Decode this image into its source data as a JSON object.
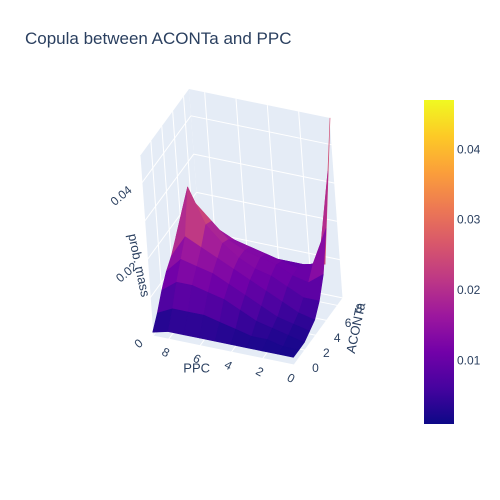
{
  "chart_data": {
    "type": "surface",
    "title": "Copula between ACONTa and PPC",
    "x_axis": {
      "label": "PPC",
      "ticks": [
        "0",
        "2",
        "4",
        "6",
        "8"
      ],
      "range": [
        0,
        9
      ]
    },
    "y_axis": {
      "label": "ACONTa",
      "ticks": [
        "0",
        "2",
        "4",
        "6",
        "8"
      ],
      "range": [
        0,
        9
      ]
    },
    "z_axis": {
      "label": "prob. mass",
      "ticks": [
        "0",
        "0.02",
        "0.04"
      ],
      "range": [
        0,
        0.047
      ]
    },
    "colorbar": {
      "ticks": [
        "0.01",
        "0.02",
        "0.03",
        "0.04"
      ],
      "tick_values": [
        0.01,
        0.02,
        0.03,
        0.04
      ],
      "range": [
        0.001,
        0.047
      ],
      "colors": [
        "#0d0887",
        "#46039f",
        "#7201a8",
        "#9c179e",
        "#bd3786",
        "#d8576b",
        "#ed7953",
        "#fb9f3a",
        "#fdca26",
        "#f0f921"
      ]
    },
    "grid": true,
    "z_values_ppc_by_aconta": [
      [
        0.002,
        0.002,
        0.002,
        0.003,
        0.004,
        0.007,
        0.012,
        0.022,
        0.035,
        0.047
      ],
      [
        0.002,
        0.002,
        0.003,
        0.004,
        0.005,
        0.007,
        0.009,
        0.012,
        0.01,
        0.008
      ],
      [
        0.002,
        0.003,
        0.004,
        0.005,
        0.007,
        0.009,
        0.01,
        0.01,
        0.009,
        0.007
      ],
      [
        0.002,
        0.003,
        0.005,
        0.007,
        0.009,
        0.011,
        0.012,
        0.011,
        0.009,
        0.006
      ],
      [
        0.002,
        0.004,
        0.007,
        0.009,
        0.011,
        0.012,
        0.013,
        0.012,
        0.009,
        0.005
      ],
      [
        0.002,
        0.005,
        0.009,
        0.011,
        0.013,
        0.014,
        0.014,
        0.013,
        0.01,
        0.005
      ],
      [
        0.002,
        0.006,
        0.01,
        0.013,
        0.015,
        0.017,
        0.016,
        0.014,
        0.011,
        0.006
      ],
      [
        0.002,
        0.006,
        0.011,
        0.014,
        0.017,
        0.021,
        0.02,
        0.016,
        0.012,
        0.006
      ],
      [
        0.002,
        0.006,
        0.011,
        0.015,
        0.019,
        0.03,
        0.024,
        0.018,
        0.012,
        0.006
      ],
      [
        0.001,
        0.004,
        0.008,
        0.011,
        0.013,
        0.016,
        0.014,
        0.011,
        0.008,
        0.004
      ]
    ]
  }
}
